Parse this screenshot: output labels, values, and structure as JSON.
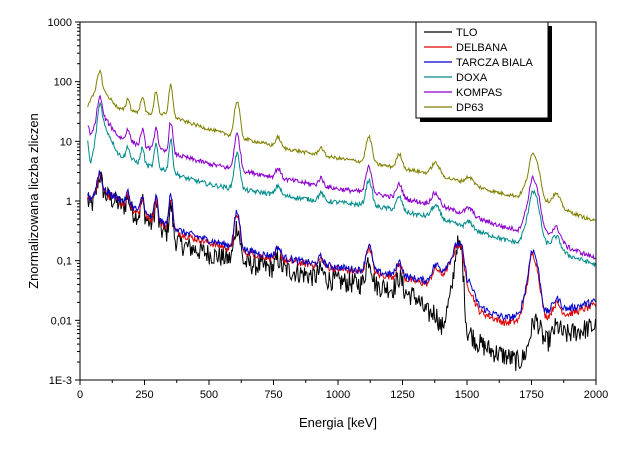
{
  "chart_data": {
    "type": "line",
    "xlabel": "Energia [keV]",
    "ylabel": "Znormalizowana liczba zliczen",
    "x_range": [
      0,
      2000
    ],
    "x_ticks": [
      0,
      250,
      500,
      750,
      1000,
      1250,
      1500,
      1750,
      2000
    ],
    "x_tick_labels": [
      "0",
      "250",
      "500",
      "750",
      "1000",
      "1250",
      "1500",
      "1750",
      "2000"
    ],
    "y_scale": "log",
    "y_range": [
      0.001,
      1000
    ],
    "y_ticks": [
      0.001,
      0.01,
      0.1,
      1,
      10,
      100,
      1000
    ],
    "y_tick_labels": [
      "1E-3",
      "0,01",
      "0,1",
      "1",
      "10",
      "100",
      "1000"
    ],
    "grid": false,
    "legend_position": "top-right",
    "peaks": [
      {
        "e": 75,
        "w": 8,
        "rel": 1.0
      },
      {
        "e": 186,
        "w": 6,
        "rel": 0.6
      },
      {
        "e": 242,
        "w": 6,
        "rel": 0.9
      },
      {
        "e": 295,
        "w": 6,
        "rel": 1.4
      },
      {
        "e": 352,
        "w": 6,
        "rel": 2.3
      },
      {
        "e": 609,
        "w": 9,
        "rel": 2.9
      },
      {
        "e": 768,
        "w": 9,
        "rel": 0.45
      },
      {
        "e": 934,
        "w": 9,
        "rel": 0.35
      },
      {
        "e": 1120,
        "w": 10,
        "rel": 1.7
      },
      {
        "e": 1238,
        "w": 10,
        "rel": 0.7
      },
      {
        "e": 1378,
        "w": 14,
        "rel": 0.6
      },
      {
        "e": 1509,
        "w": 14,
        "rel": 0.3
      },
      {
        "e": 1764,
        "w": 16,
        "rel": 2.0
      },
      {
        "e": 1847,
        "w": 14,
        "rel": 0.6
      }
    ],
    "series": [
      {
        "name": "TLO",
        "color": "#000000",
        "x": [
          30,
          40,
          80,
          150,
          250,
          350,
          400,
          500,
          600,
          700,
          800,
          900,
          1000,
          1100,
          1200,
          1300,
          1350,
          1400,
          1440,
          1460,
          1480,
          1500,
          1550,
          1600,
          1650,
          1700,
          1750,
          1800,
          1900,
          2000
        ],
        "y": [
          1.0,
          0.8,
          1.4,
          0.9,
          0.5,
          0.25,
          0.18,
          0.13,
          0.1,
          0.08,
          0.07,
          0.055,
          0.045,
          0.04,
          0.035,
          0.025,
          0.012,
          0.006,
          0.03,
          0.19,
          0.15,
          0.005,
          0.004,
          0.003,
          0.0025,
          0.002,
          0.003,
          0.004,
          0.006,
          0.008
        ],
        "noise": 0.18
      },
      {
        "name": "DELBANA",
        "color": "#e00000",
        "x": [
          30,
          40,
          80,
          150,
          250,
          350,
          400,
          500,
          600,
          700,
          800,
          900,
          1000,
          1100,
          1200,
          1300,
          1350,
          1400,
          1440,
          1460,
          1480,
          1500,
          1550,
          1600,
          1650,
          1700,
          1750,
          1800,
          1900,
          2000
        ],
        "y": [
          1.2,
          1.0,
          1.5,
          1.0,
          0.55,
          0.35,
          0.27,
          0.2,
          0.15,
          0.12,
          0.1,
          0.085,
          0.072,
          0.063,
          0.055,
          0.045,
          0.04,
          0.05,
          0.1,
          0.19,
          0.16,
          0.03,
          0.014,
          0.011,
          0.009,
          0.01,
          0.055,
          0.011,
          0.013,
          0.018
        ],
        "noise": 0.06
      },
      {
        "name": "TARCZA BIALA",
        "color": "#0000cc",
        "x": [
          30,
          40,
          80,
          150,
          250,
          350,
          400,
          500,
          600,
          700,
          800,
          900,
          1000,
          1100,
          1200,
          1300,
          1350,
          1400,
          1440,
          1460,
          1480,
          1500,
          1550,
          1600,
          1650,
          1700,
          1750,
          1800,
          1900,
          2000
        ],
        "y": [
          1.3,
          1.1,
          1.6,
          1.1,
          0.6,
          0.38,
          0.3,
          0.22,
          0.17,
          0.13,
          0.11,
          0.09,
          0.078,
          0.068,
          0.06,
          0.05,
          0.045,
          0.06,
          0.11,
          0.2,
          0.17,
          0.04,
          0.017,
          0.013,
          0.011,
          0.012,
          0.065,
          0.013,
          0.016,
          0.021
        ],
        "noise": 0.06
      },
      {
        "name": "DOXA",
        "color": "#008b8b",
        "x": [
          30,
          40,
          80,
          150,
          250,
          350,
          400,
          500,
          600,
          700,
          800,
          900,
          1000,
          1100,
          1200,
          1300,
          1400,
          1500,
          1550,
          1600,
          1650,
          1700,
          1750,
          1800,
          1900,
          2000
        ],
        "y": [
          10,
          4,
          25,
          6,
          4,
          3.2,
          2.5,
          1.9,
          1.6,
          1.4,
          1.2,
          1.05,
          0.95,
          0.85,
          0.75,
          0.6,
          0.5,
          0.35,
          0.3,
          0.26,
          0.22,
          0.2,
          0.6,
          0.2,
          0.12,
          0.085
        ],
        "noise": 0.04
      },
      {
        "name": "KOMPAS",
        "color": "#8b00cc",
        "x": [
          30,
          40,
          80,
          150,
          250,
          350,
          400,
          500,
          600,
          700,
          800,
          900,
          1000,
          1100,
          1200,
          1300,
          1400,
          1500,
          1550,
          1600,
          1650,
          1700,
          1750,
          1800,
          1900,
          2000
        ],
        "y": [
          20,
          12,
          30,
          12,
          8,
          6.5,
          5.5,
          4.2,
          3.4,
          2.8,
          2.3,
          1.9,
          1.6,
          1.4,
          1.2,
          1.0,
          0.8,
          0.6,
          0.5,
          0.42,
          0.36,
          0.33,
          1.0,
          0.3,
          0.16,
          0.11
        ],
        "noise": 0.04
      },
      {
        "name": "DP63",
        "color": "#808000",
        "x": [
          30,
          40,
          80,
          150,
          250,
          350,
          400,
          500,
          600,
          700,
          800,
          900,
          1000,
          1100,
          1200,
          1300,
          1400,
          1500,
          1550,
          1600,
          1650,
          1700,
          1750,
          1800,
          1900,
          2000
        ],
        "y": [
          40,
          50,
          80,
          35,
          30,
          28,
          22,
          16,
          12,
          9.5,
          7.5,
          6.2,
          5.2,
          4.5,
          3.8,
          3.2,
          2.6,
          2.0,
          1.7,
          1.45,
          1.3,
          1.2,
          2.5,
          1.0,
          0.65,
          0.45
        ],
        "noise": 0.03
      }
    ]
  }
}
